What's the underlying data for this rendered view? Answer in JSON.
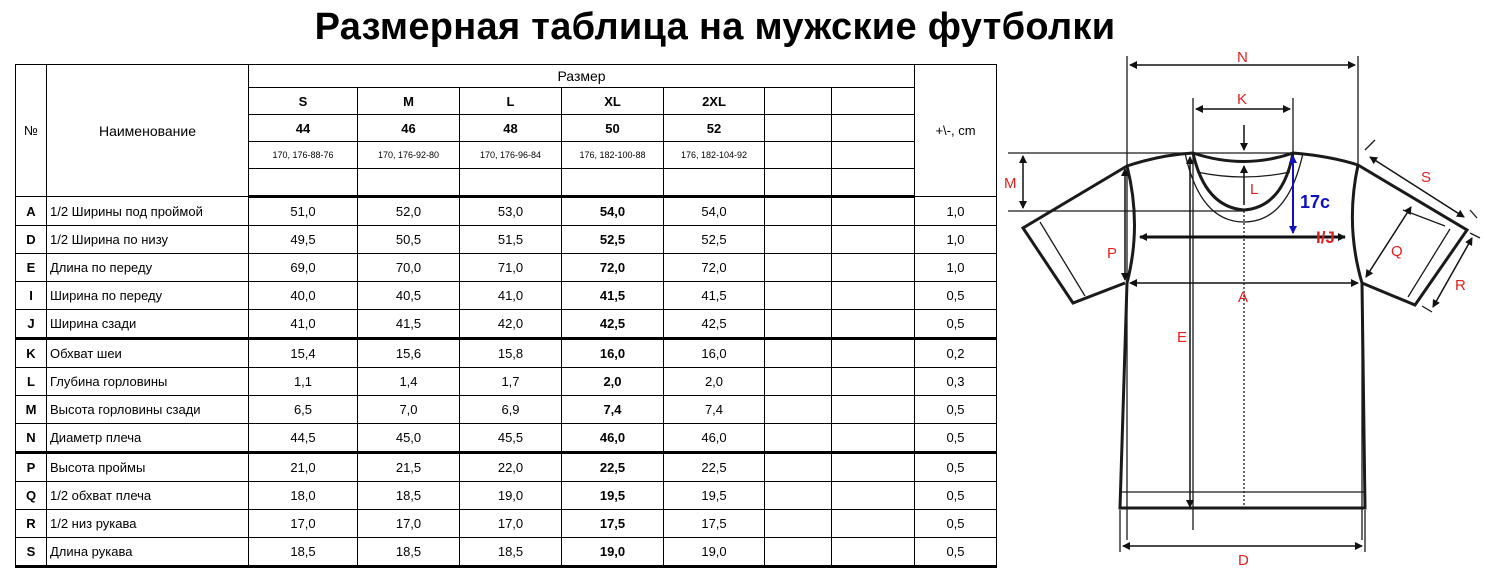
{
  "title": "Размерная таблица на мужские футболки",
  "table": {
    "col_no": "№",
    "col_name": "Наименование",
    "size_header": "Размер",
    "tolerance_header": "+\\-, cm",
    "sizes": [
      "S",
      "M",
      "L",
      "XL",
      "2XL"
    ],
    "ru_sizes": [
      "44",
      "46",
      "48",
      "50",
      "52"
    ],
    "heights": [
      "170, 176-88-76",
      "170, 176-92-80",
      "170, 176-96-84",
      "176, 182-100-88",
      "176, 182-104-92"
    ],
    "rows": [
      {
        "code": "A",
        "name": "1/2 Ширины под проймой",
        "values": [
          "51,0",
          "52,0",
          "53,0",
          "54,0",
          "54,0"
        ],
        "tol": "1,0"
      },
      {
        "code": "D",
        "name": "1/2 Ширина по низу",
        "values": [
          "49,5",
          "50,5",
          "51,5",
          "52,5",
          "52,5"
        ],
        "tol": "1,0"
      },
      {
        "code": "E",
        "name": "Длина по переду",
        "values": [
          "69,0",
          "70,0",
          "71,0",
          "72,0",
          "72,0"
        ],
        "tol": "1,0"
      },
      {
        "code": "I",
        "name": "Ширина по переду",
        "values": [
          "40,0",
          "40,5",
          "41,0",
          "41,5",
          "41,5"
        ],
        "tol": "0,5"
      },
      {
        "code": "J",
        "name": "Ширина сзади",
        "values": [
          "41,0",
          "41,5",
          "42,0",
          "42,5",
          "42,5"
        ],
        "tol": "0,5"
      },
      {
        "code": "K",
        "name": "Обхват шеи",
        "values": [
          "15,4",
          "15,6",
          "15,8",
          "16,0",
          "16,0"
        ],
        "tol": "0,2"
      },
      {
        "code": "L",
        "name": "Глубина горловины",
        "values": [
          "1,1",
          "1,4",
          "1,7",
          "2,0",
          "2,0"
        ],
        "tol": "0,3"
      },
      {
        "code": "M",
        "name": "Высота горловины сзади",
        "values": [
          "6,5",
          "7,0",
          "6,9",
          "7,4",
          "7,4"
        ],
        "tol": "0,5"
      },
      {
        "code": "N",
        "name": "Диаметр плеча",
        "values": [
          "44,5",
          "45,0",
          "45,5",
          "46,0",
          "46,0"
        ],
        "tol": "0,5"
      },
      {
        "code": "P",
        "name": "Высота проймы",
        "values": [
          "21,0",
          "21,5",
          "22,0",
          "22,5",
          "22,5"
        ],
        "tol": "0,5"
      },
      {
        "code": "Q",
        "name": "1/2 обхват плеча",
        "values": [
          "18,0",
          "18,5",
          "19,0",
          "19,5",
          "19,5"
        ],
        "tol": "0,5"
      },
      {
        "code": "R",
        "name": "1/2 низ рукава",
        "values": [
          "17,0",
          "17,0",
          "17,0",
          "17,5",
          "17,5"
        ],
        "tol": "0,5"
      },
      {
        "code": "S",
        "name": "Длина рукава",
        "values": [
          "18,5",
          "18,5",
          "18,5",
          "19,0",
          "19,0"
        ],
        "tol": "0,5"
      }
    ]
  },
  "diagram": {
    "labels": {
      "N": "N",
      "K": "K",
      "M": "M",
      "L": "L",
      "S": "S",
      "Q": "Q",
      "R": "R",
      "P": "P",
      "A": "A",
      "E": "E",
      "D": "D",
      "IJ": "I/J",
      "blue": "17c"
    },
    "colors": {
      "label": "#e02020",
      "blue_mark": "#1010c0",
      "outline": "#1a1a1a"
    }
  }
}
